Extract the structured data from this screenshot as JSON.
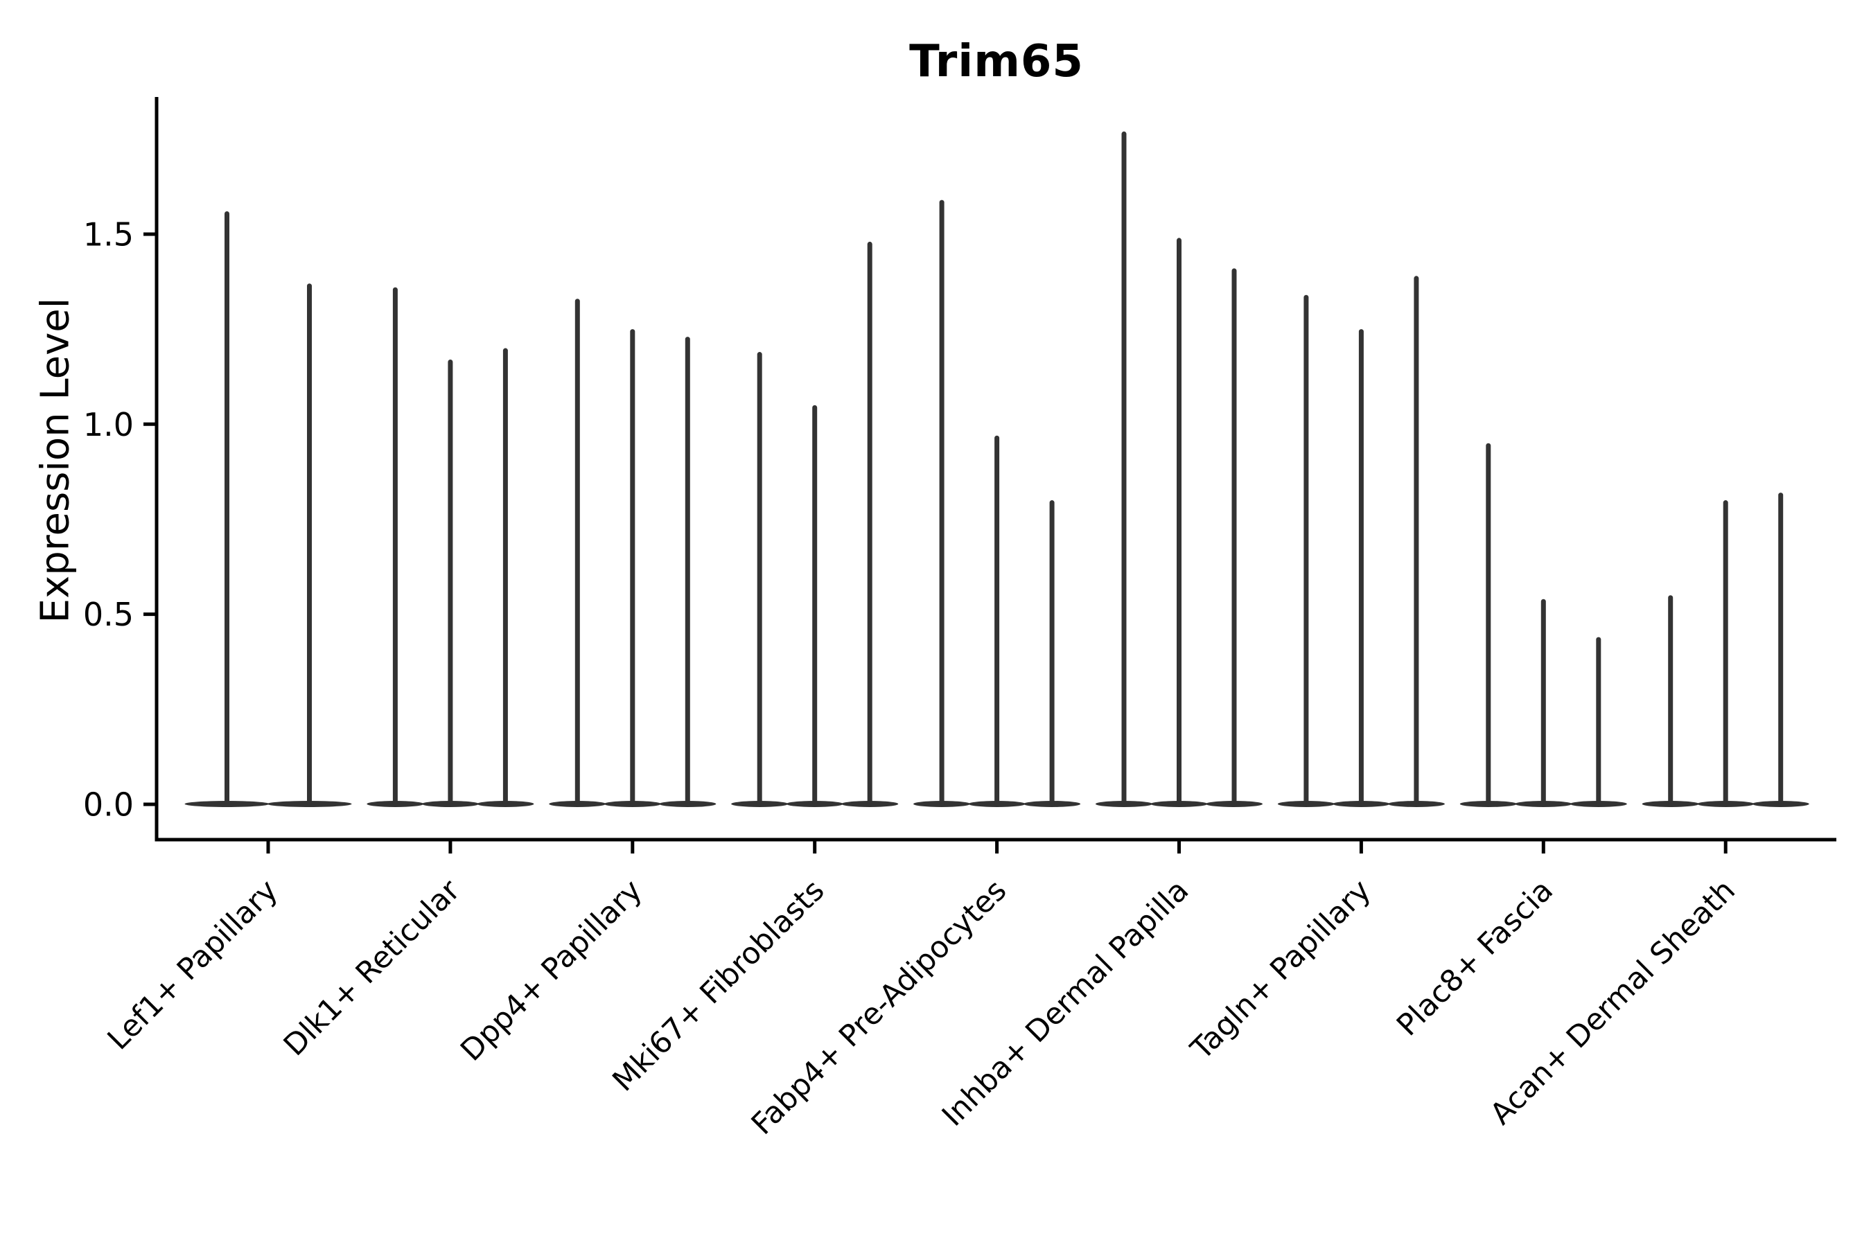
{
  "colors": {
    "violin_fill": "#333333",
    "axis": "#000000",
    "text": "#000000",
    "background": "#ffffff"
  },
  "chart_data": {
    "type": "violin",
    "title": "Trim65",
    "xlabel": "",
    "ylabel": "Expression Level",
    "yticks": [
      0.0,
      0.5,
      1.0,
      1.5
    ],
    "ytick_labels": [
      "0.0",
      "0.5",
      "1.0",
      "1.5"
    ],
    "ylim": [
      -0.09,
      1.86
    ],
    "legend": "none",
    "grid": false,
    "categories": [
      "Lef1+ Papillary",
      "Dlk1+ Reticular",
      "Dpp4+ Papillary",
      "Mki67+ Fibroblasts",
      "Fabp4+ Pre-Adipocytes",
      "Inhba+ Dermal Papilla",
      "Tagln+ Papillary",
      "Plac8+ Fascia",
      "Acan+ Dermal Sheath"
    ],
    "series": [
      {
        "category": "Lef1+ Papillary",
        "violin_maxima": [
          1.56,
          1.37
        ],
        "baseline_value": 0.0
      },
      {
        "category": "Dlk1+ Reticular",
        "violin_maxima": [
          1.36,
          1.17,
          1.2
        ],
        "baseline_value": 0.0
      },
      {
        "category": "Dpp4+ Papillary",
        "violin_maxima": [
          1.33,
          1.25,
          1.23
        ],
        "baseline_value": 0.0
      },
      {
        "category": "Mki67+ Fibroblasts",
        "violin_maxima": [
          1.19,
          1.05,
          1.48
        ],
        "baseline_value": 0.0
      },
      {
        "category": "Fabp4+ Pre-Adipocytes",
        "violin_maxima": [
          1.59,
          0.97,
          0.8
        ],
        "baseline_value": 0.0
      },
      {
        "category": "Inhba+ Dermal Papilla",
        "violin_maxima": [
          1.77,
          1.49,
          1.41
        ],
        "baseline_value": 0.0
      },
      {
        "category": "Tagln+ Papillary",
        "violin_maxima": [
          1.34,
          1.25,
          1.39
        ],
        "baseline_value": 0.0
      },
      {
        "category": "Plac8+ Fascia",
        "violin_maxima": [
          0.95,
          0.54,
          0.44
        ],
        "baseline_value": 0.0
      },
      {
        "category": "Acan+ Dermal Sheath",
        "violin_maxima": [
          0.55,
          0.8,
          0.82
        ],
        "baseline_value": 0.0
      }
    ]
  }
}
